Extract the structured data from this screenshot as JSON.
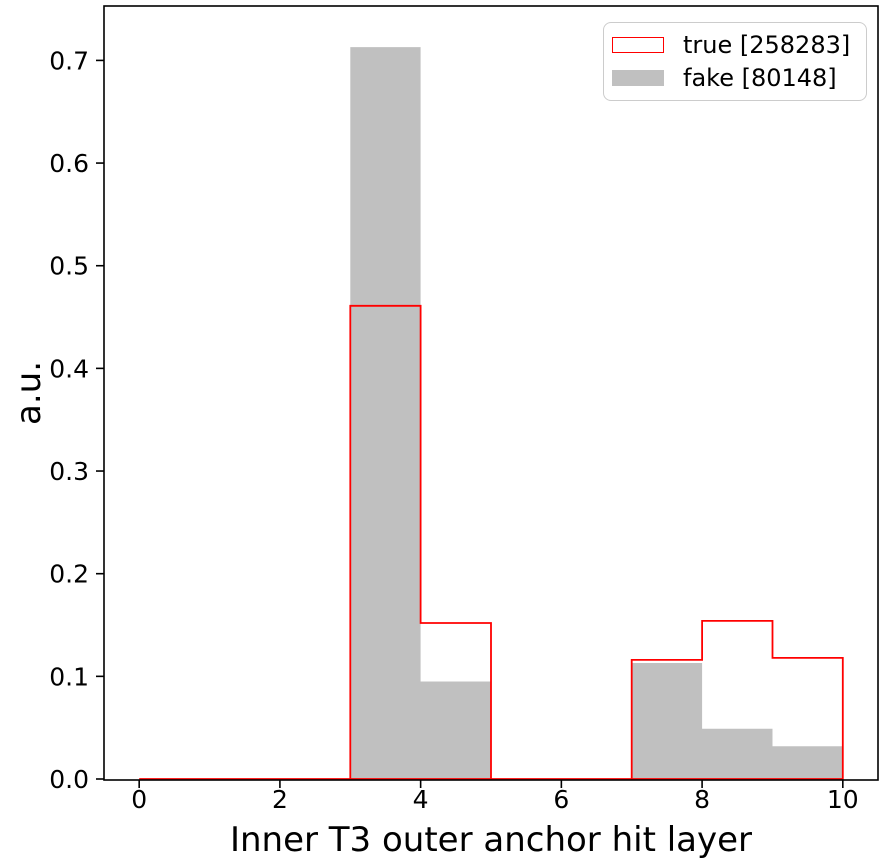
{
  "chart_data": {
    "type": "bar",
    "subtype": "histogram",
    "title": "",
    "xlabel": "Inner T3 outer anchor hit layer",
    "ylabel": "a.u.",
    "bin_edges": [
      0,
      1,
      2,
      3,
      4,
      5,
      6,
      7,
      8,
      9,
      10
    ],
    "series": [
      {
        "name": "true",
        "label": "true [258283]",
        "count": 258283,
        "style": "step-outline",
        "color": "#ff0000",
        "values": [
          0,
          0,
          0,
          0.461,
          0.152,
          0,
          0,
          0.116,
          0.154,
          0.118
        ]
      },
      {
        "name": "fake",
        "label": "fake [80148]",
        "count": 80148,
        "style": "filled",
        "color": "#c0c0c0",
        "values": [
          0,
          0,
          0,
          0.713,
          0.095,
          0,
          0,
          0.113,
          0.049,
          0.032
        ]
      }
    ],
    "xlim": [
      -0.5,
      10.5
    ],
    "ylim": [
      0,
      0.753
    ],
    "xticks": {
      "values": [
        0,
        2,
        4,
        6,
        8,
        10
      ],
      "labels": [
        "0",
        "2",
        "4",
        "6",
        "8",
        "10"
      ]
    },
    "yticks": {
      "values": [
        0,
        0.1,
        0.2,
        0.3,
        0.4,
        0.5,
        0.6,
        0.7
      ],
      "labels": [
        "0.0",
        "0.1",
        "0.2",
        "0.3",
        "0.4",
        "0.5",
        "0.6",
        "0.7"
      ]
    },
    "grid": false,
    "legend_position": "upper right",
    "axis_color": "#000000",
    "background_color": "#ffffff"
  }
}
